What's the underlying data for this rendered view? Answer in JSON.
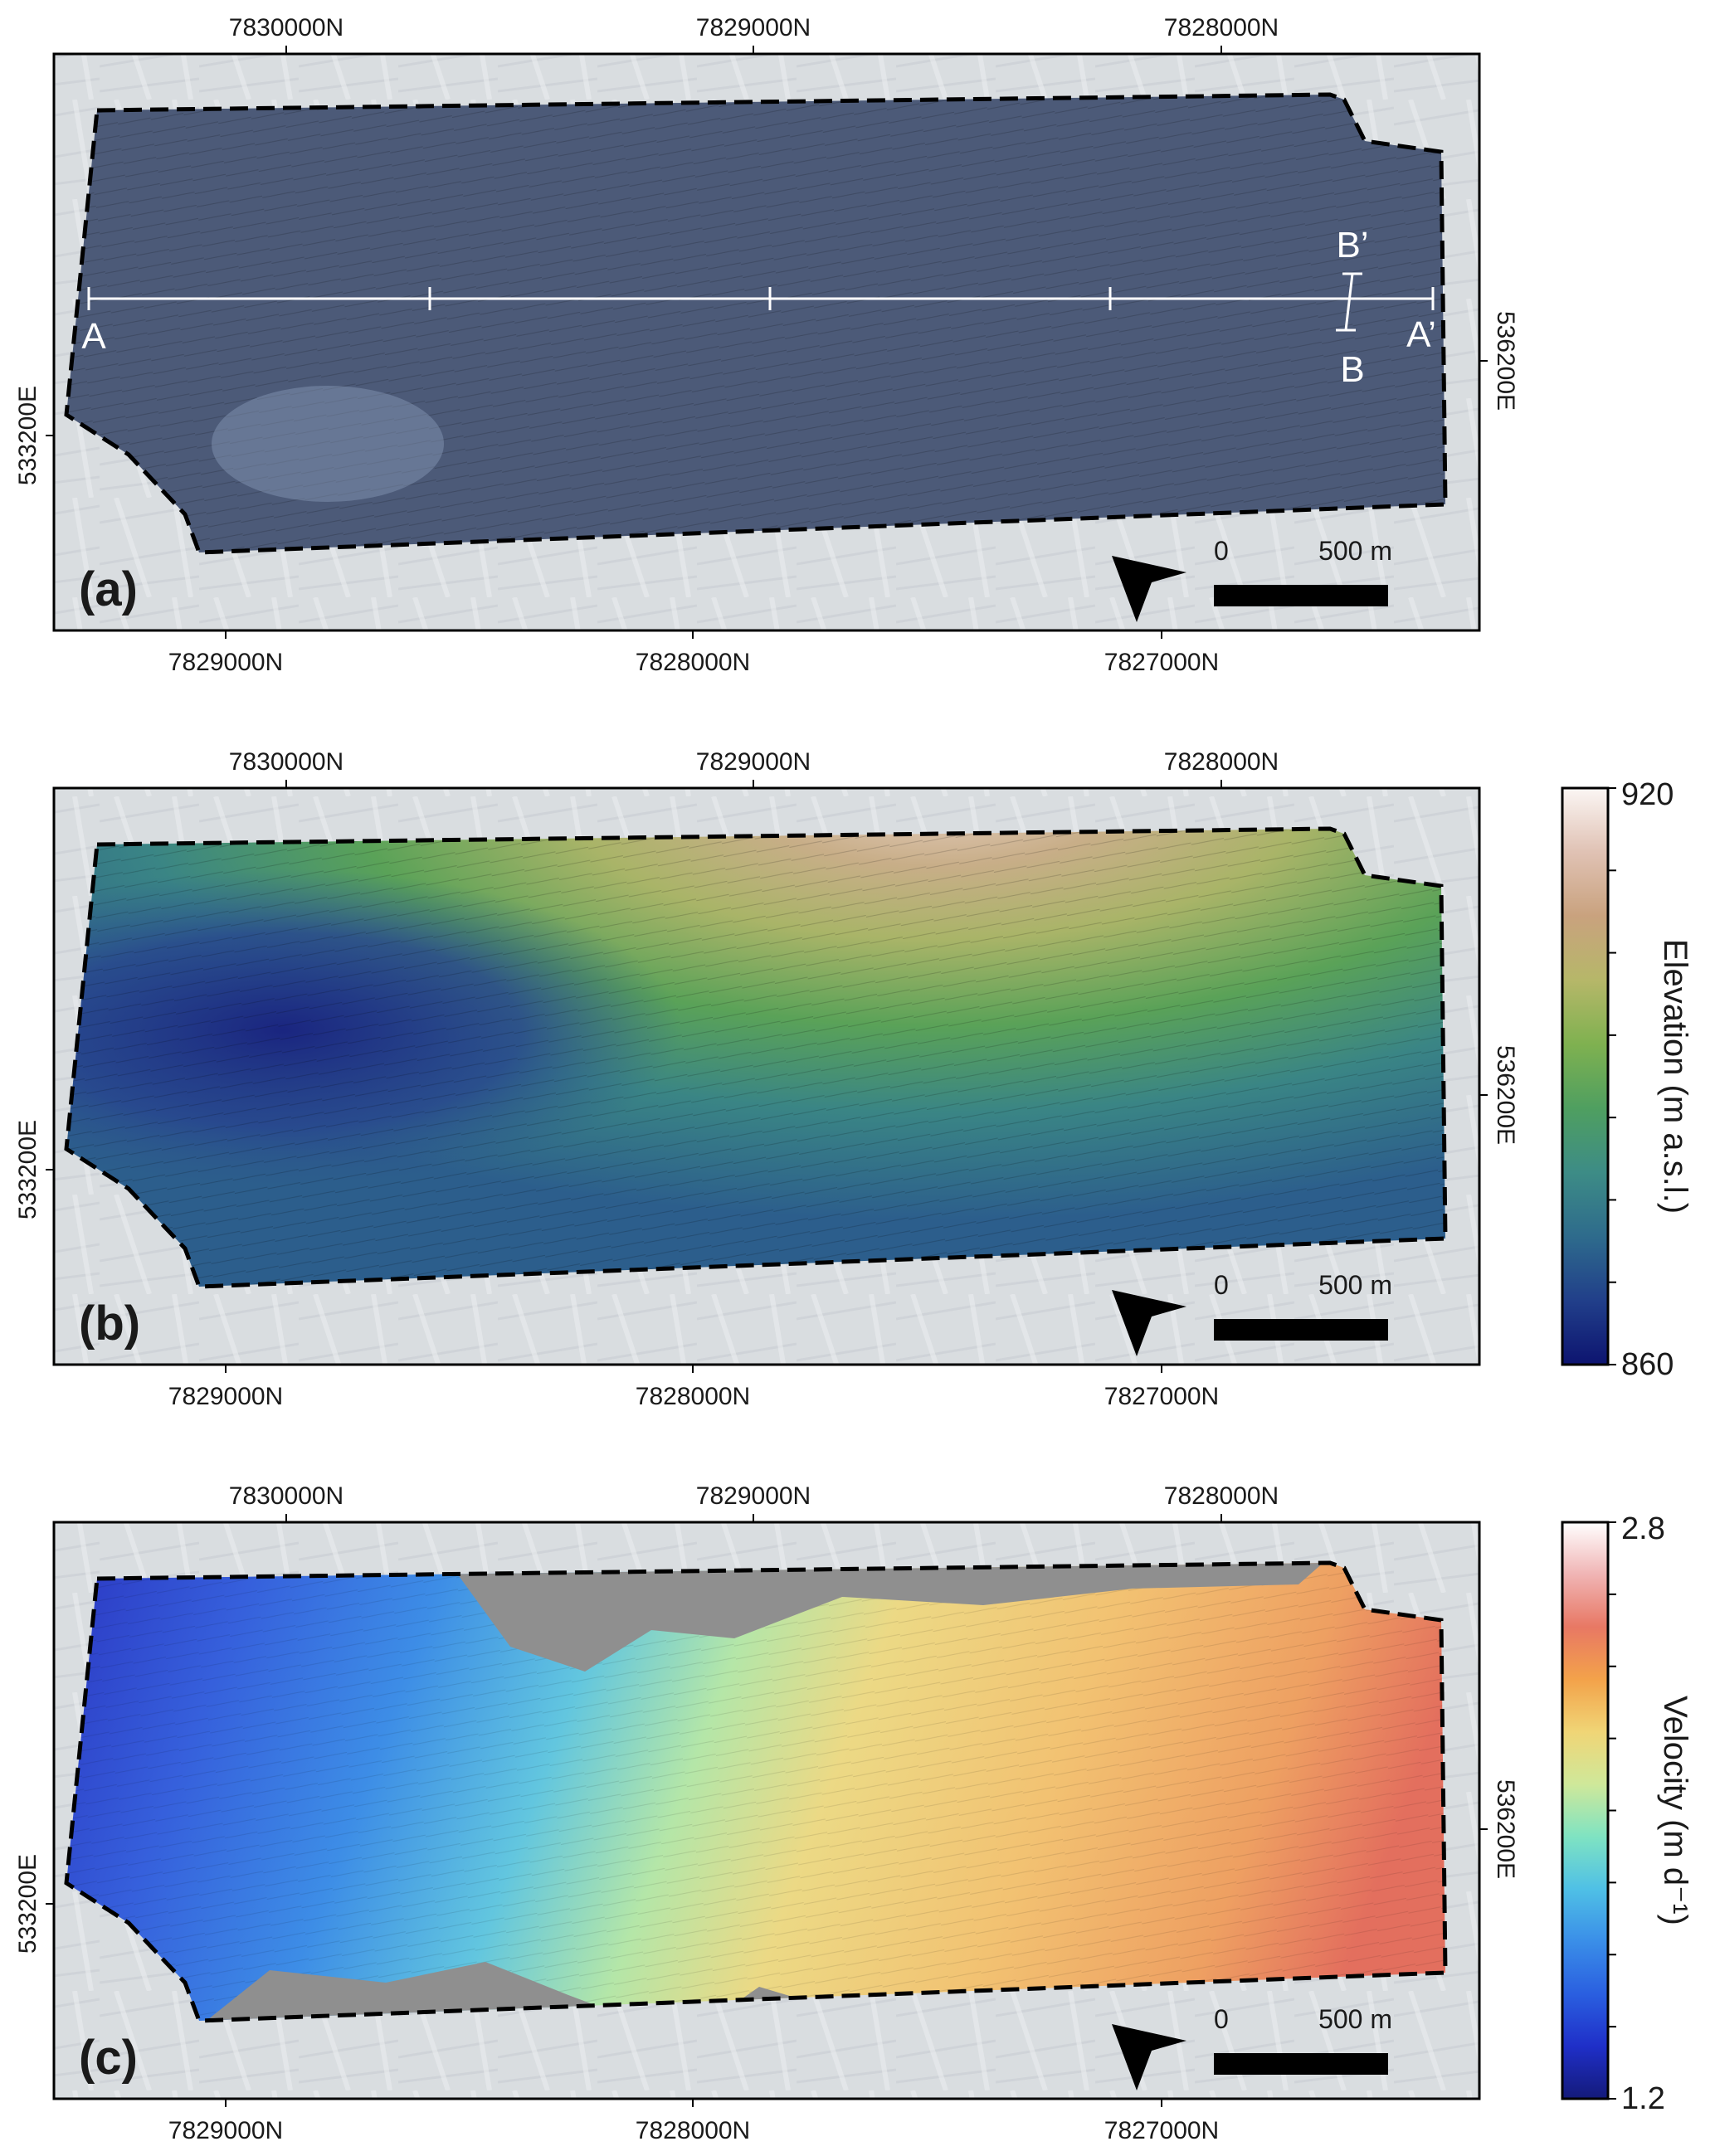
{
  "panels": [
    {
      "id": "a",
      "label": "(a)",
      "top_ticks": [
        "7830000N",
        "7829000N",
        "7828000N"
      ],
      "bottom_ticks": [
        "7829000N",
        "7828000N",
        "7827000N"
      ],
      "left_tick": "533200E",
      "right_tick": "536200E",
      "profile_labels": {
        "start": "A",
        "end": "A’",
        "cross_start": "B",
        "cross_end": "B’"
      },
      "scalebar": {
        "zero": "0",
        "length": "500 m"
      },
      "overlay": "imagery"
    },
    {
      "id": "b",
      "label": "(b)",
      "top_ticks": [
        "7830000N",
        "7829000N",
        "7828000N"
      ],
      "bottom_ticks": [
        "7829000N",
        "7828000N",
        "7827000N"
      ],
      "left_tick": "533200E",
      "right_tick": "536200E",
      "scalebar": {
        "zero": "0",
        "length": "500 m"
      },
      "overlay": "elevation",
      "colorbar": {
        "title": "Elevation (m a.s.l.)",
        "min_label": "860",
        "max_label": "920",
        "min": 860,
        "max": 920,
        "colors": [
          "#0d1470",
          "#213f8a",
          "#2e6b8c",
          "#3d8c86",
          "#4f9f60",
          "#7fb150",
          "#b6b769",
          "#c9a27e",
          "#e0c2b4",
          "#fbf6f4"
        ]
      }
    },
    {
      "id": "c",
      "label": "(c)",
      "top_ticks": [
        "7830000N",
        "7829000N",
        "7828000N"
      ],
      "bottom_ticks": [
        "7829000N",
        "7828000N",
        "7827000N"
      ],
      "left_tick": "533200E",
      "right_tick": "536200E",
      "scalebar": {
        "zero": "0",
        "length": "500 m"
      },
      "overlay": "velocity",
      "colorbar": {
        "title": "Velocity (m d⁻¹)",
        "min_label": "1.2",
        "max_label": "2.8",
        "min": 1.2,
        "max": 2.8,
        "colors": [
          "#141a7a",
          "#1f2fc8",
          "#2a5fe0",
          "#3a8ee8",
          "#4fc0e6",
          "#7fe3c2",
          "#cfe89a",
          "#f0d576",
          "#f3a24a",
          "#e87864",
          "#f0b4b4",
          "#ffffff"
        ]
      }
    }
  ],
  "colors": {
    "background_snow": "#d9dde0",
    "imagery_tint": "#4c5a78",
    "no_data": "#8f8f8f",
    "outline": "#000000",
    "profile_line": "#ffffff"
  }
}
